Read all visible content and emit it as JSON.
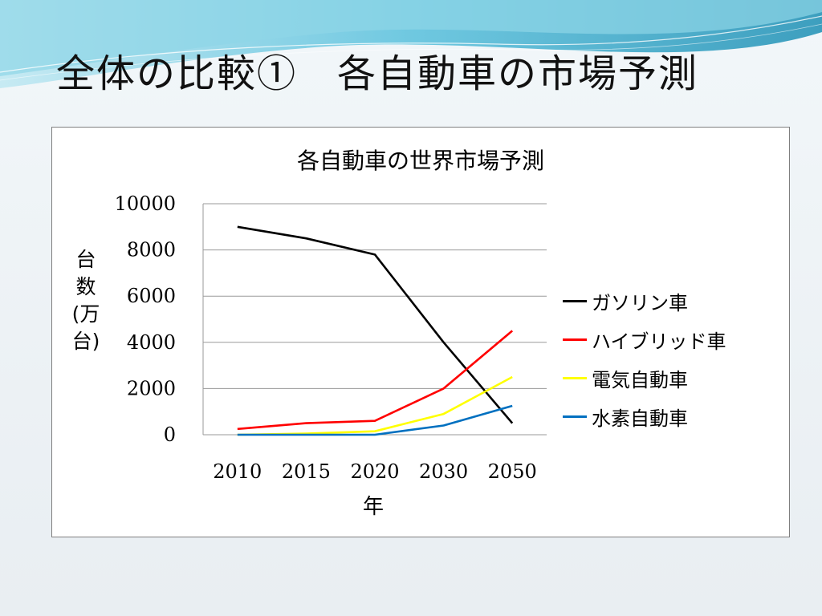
{
  "slide": {
    "title": "全体の比較①　各自動車の市場予測"
  },
  "colors": {
    "header_wave_dark": "#2e9fbf",
    "header_wave_light": "#9ed9e8"
  },
  "chart_data": {
    "type": "line",
    "title": "各自動車の世界市場予測",
    "xlabel": "年",
    "ylabel": "台数(万台)",
    "categories": [
      "2010",
      "2015",
      "2020",
      "2030",
      "2050"
    ],
    "ylim": [
      0,
      10000
    ],
    "yticks": [
      "0",
      "2000",
      "4000",
      "6000",
      "8000",
      "10000"
    ],
    "grid": true,
    "legend_position": "right",
    "series": [
      {
        "name": "ガソリン車",
        "color": "#000000",
        "values": [
          9000,
          8500,
          7800,
          4000,
          500
        ]
      },
      {
        "name": "ハイブリッド車",
        "color": "#ff0000",
        "values": [
          250,
          500,
          600,
          2000,
          4500
        ]
      },
      {
        "name": "電気自動車",
        "color": "#ffff00",
        "values": [
          0,
          50,
          150,
          900,
          2500
        ]
      },
      {
        "name": "水素自動車",
        "color": "#0070c0",
        "values": [
          0,
          0,
          0,
          400,
          1250
        ]
      }
    ]
  }
}
